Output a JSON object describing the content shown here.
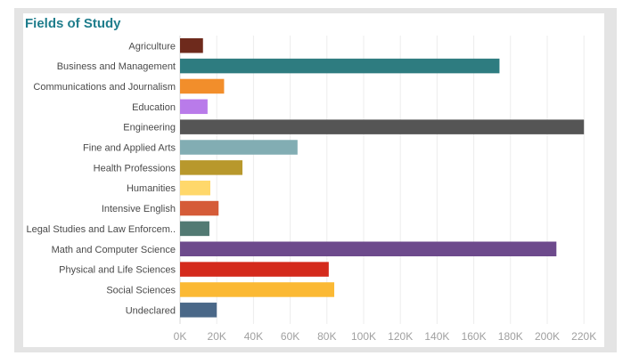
{
  "title": "Fields of Study",
  "chart_data": {
    "type": "bar",
    "orientation": "horizontal",
    "title": "Fields of Study",
    "xlabel": "",
    "ylabel": "",
    "xlim": [
      0,
      225000
    ],
    "grid": true,
    "legend": "none",
    "x_ticks": [
      {
        "value": 0,
        "label": "0K"
      },
      {
        "value": 20000,
        "label": "20K"
      },
      {
        "value": 40000,
        "label": "40K"
      },
      {
        "value": 60000,
        "label": "60K"
      },
      {
        "value": 80000,
        "label": "80K"
      },
      {
        "value": 100000,
        "label": "100K"
      },
      {
        "value": 120000,
        "label": "120K"
      },
      {
        "value": 140000,
        "label": "140K"
      },
      {
        "value": 160000,
        "label": "160K"
      },
      {
        "value": 180000,
        "label": "180K"
      },
      {
        "value": 200000,
        "label": "200K"
      },
      {
        "value": 220000,
        "label": "220K"
      }
    ],
    "categories": [
      "Agriculture",
      "Business and Management",
      "Communications and Journalism",
      "Education",
      "Engineering",
      "Fine and Applied Arts",
      "Health Professions",
      "Humanities",
      "Intensive English",
      "Legal Studies and Law Enforcem..",
      "Math and Computer Science",
      "Physical and Life Sciences",
      "Social Sciences",
      "Undeclared"
    ],
    "values": [
      12500,
      174000,
      24000,
      15000,
      220000,
      64000,
      34000,
      16500,
      21000,
      16000,
      205000,
      81000,
      84000,
      20000
    ],
    "colors": [
      "#6e2a1c",
      "#2e7c80",
      "#f28e2b",
      "#b97bea",
      "#555555",
      "#82adb3",
      "#b8982c",
      "#ffd86b",
      "#d55b38",
      "#527a73",
      "#6d4a8c",
      "#d42a1c",
      "#fbb934",
      "#4a6888"
    ]
  }
}
